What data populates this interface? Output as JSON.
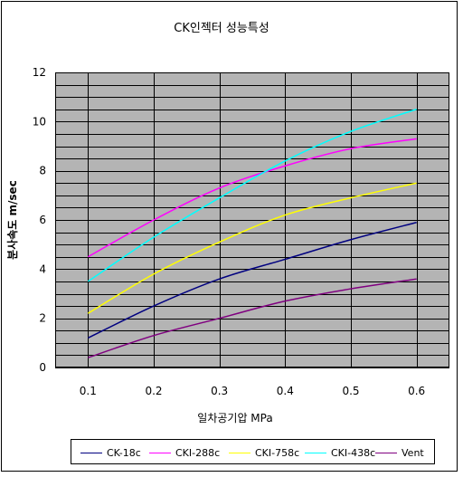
{
  "chart_data": {
    "type": "line",
    "title": "CK인젝터 성능특성",
    "xlabel": "일차공기압 MPa",
    "ylabel": "분사속도 m/sec",
    "x": [
      0.1,
      0.2,
      0.3,
      0.4,
      0.5,
      0.6
    ],
    "x_tick_labels": [
      "0.1",
      "0.2",
      "0.3",
      "0.4",
      "0.5",
      "0.6"
    ],
    "y_tick_labels": [
      "0",
      "2",
      "4",
      "6",
      "8",
      "10",
      "12"
    ],
    "ylim": [
      0,
      12
    ],
    "xlim": [
      0.05,
      0.65
    ],
    "grid": true,
    "legend_position": "bottom",
    "colors": {
      "plot_background": "#b4b4b4",
      "grid": "#000000"
    },
    "series": [
      {
        "name": "CK-18c",
        "color": "#000080",
        "values": [
          1.2,
          2.5,
          3.6,
          4.4,
          5.2,
          5.9
        ]
      },
      {
        "name": "CKI-288c",
        "color": "#ff00ff",
        "values": [
          4.5,
          6.0,
          7.3,
          8.2,
          8.9,
          9.3
        ]
      },
      {
        "name": "CKI-758c",
        "color": "#ffff00",
        "values": [
          2.2,
          3.8,
          5.1,
          6.2,
          6.9,
          7.5
        ]
      },
      {
        "name": "CKI-438c",
        "color": "#00ffff",
        "values": [
          3.5,
          5.3,
          6.9,
          8.4,
          9.6,
          10.5
        ]
      },
      {
        "name": "Vent",
        "color": "#800080",
        "values": [
          0.4,
          1.3,
          2.0,
          2.7,
          3.2,
          3.6
        ]
      }
    ]
  }
}
